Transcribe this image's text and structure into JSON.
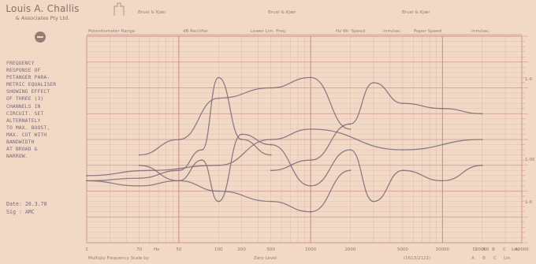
{
  "company": {
    "name": "Louis A. Challis",
    "subtitle": "& Associates Pty Ltd."
  },
  "note": "FREQUENCY\nRESPONSE OF\nPETANGER PARA-\nMETRIC EQUALISER\nSHOWING EFFECT\nOF THREE (3)\nCHANNELS IN\nCIRCUIT. SET\nALTERNATELY\nTO MAX. BOOST,\nMAX. CUT WITH\nBANDWIDTH\nAT BROAD &\nNARROW.",
  "date_line": "Date: 20.3.78",
  "sig_line": "Sig : AMC",
  "header": {
    "brand_labels": [
      "Bruel & Kjær",
      "Bruel & Kjær",
      "Bruel & Kjær"
    ],
    "fields": [
      "Potentiometer Range",
      "dB  Rectifier",
      "Lower Lim. Freq.",
      "Hz  Wr. Speed",
      "mm/sec.",
      "Paper Speed",
      "mm/sec."
    ]
  },
  "footer": {
    "left": "Multiply Frequency Scale by",
    "center": "Zero Level",
    "code": "(1613/2122)",
    "right_letters": [
      "A",
      "B",
      "C",
      "Lin."
    ],
    "right_letters_row2": [
      "A",
      "B",
      "C",
      "Lin."
    ]
  },
  "colors": {
    "paper": "#f1d9c6",
    "grid": "#d9a6a0",
    "grid_dark": "#c88e8a",
    "trace": "#7c6a78",
    "ink": "#8e7570"
  },
  "chart_data": {
    "type": "line",
    "title": "",
    "xlabel": "",
    "ylabel": "",
    "x_scale": "log",
    "xlim": [
      20,
      40000
    ],
    "ylim": [
      -20,
      20
    ],
    "grid": true,
    "x_tick_labels": [
      {
        "f": 20,
        "label": "2"
      },
      {
        "f": 50,
        "label": "70"
      },
      {
        "f": 50,
        "label": "Hz"
      },
      {
        "f": 100,
        "label": "50"
      },
      {
        "f": 200,
        "label": "100"
      },
      {
        "f": 300,
        "label": "200"
      },
      {
        "f": 500,
        "label": "500"
      },
      {
        "f": 1000,
        "label": "1000"
      },
      {
        "f": 2000,
        "label": "2000"
      },
      {
        "f": 5000,
        "label": "5000"
      },
      {
        "f": 10000,
        "label": "10000"
      },
      {
        "f": 20000,
        "label": "20000"
      },
      {
        "f": 40000,
        "label": "40000"
      }
    ],
    "x_tick_letters": [
      "D",
      "A",
      "B",
      "C",
      "Lin."
    ],
    "right_axis_labels": [
      "1-0",
      "1-00",
      "1-0"
    ],
    "series": [
      {
        "x": [
          20,
          50,
          100,
          150,
          200,
          300,
          500
        ],
        "y": [
          -8,
          -7.5,
          -6,
          -2,
          12,
          0,
          -3
        ]
      },
      {
        "x": [
          20,
          50,
          100,
          150,
          200,
          300,
          500
        ],
        "y": [
          -8,
          -9,
          -8,
          -4,
          -12,
          1,
          -1
        ]
      },
      {
        "x": [
          50,
          100,
          200,
          500,
          1000,
          2000
        ],
        "y": [
          -3,
          0,
          8,
          10,
          12,
          2
        ]
      },
      {
        "x": [
          50,
          100,
          200,
          500,
          1000,
          2000
        ],
        "y": [
          -5,
          -8,
          -10,
          -12,
          -14,
          -6
        ]
      },
      {
        "x": [
          500,
          1000,
          2000,
          3000,
          5000,
          10000,
          20000
        ],
        "y": [
          -6,
          -4,
          3,
          11,
          7,
          6,
          5
        ]
      },
      {
        "x": [
          500,
          1000,
          2000,
          3000,
          5000,
          10000,
          20000
        ],
        "y": [
          -1,
          -9,
          -2,
          -12,
          -6,
          -8,
          -5
        ]
      },
      {
        "x": [
          20,
          60,
          200,
          500,
          1000,
          5000,
          20000
        ],
        "y": [
          -7,
          -6,
          -5,
          0,
          2,
          -2,
          0
        ]
      }
    ]
  }
}
